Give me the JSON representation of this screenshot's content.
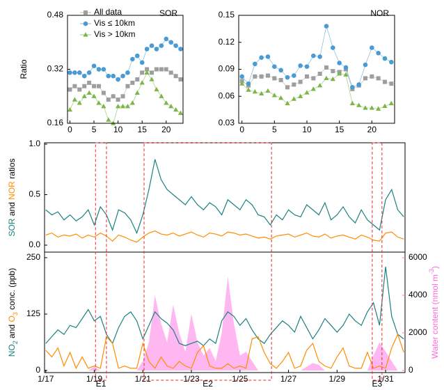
{
  "chart_data": [
    {
      "type": "line",
      "title": "SOR",
      "title_color": "#1a8a8a",
      "y_label": "Ratio",
      "legend": "upper left",
      "x": [
        0,
        1,
        2,
        3,
        4,
        5,
        6,
        7,
        8,
        9,
        10,
        11,
        12,
        13,
        14,
        15,
        16,
        17,
        18,
        19,
        20,
        21,
        22,
        23
      ],
      "xlim": [
        -0.5,
        23.5
      ],
      "xticks": [
        0,
        5,
        10,
        15,
        20
      ],
      "ylim": [
        0.16,
        0.48
      ],
      "yticks": [
        0.16,
        0.32,
        0.48
      ],
      "series": [
        {
          "name": "All data",
          "color": "#9e9e9e",
          "marker": "square",
          "values": [
            0.26,
            0.27,
            0.26,
            0.27,
            0.28,
            0.27,
            0.27,
            0.25,
            0.23,
            0.24,
            0.23,
            0.24,
            0.27,
            0.28,
            0.29,
            0.31,
            0.32,
            0.31,
            0.32,
            0.32,
            0.32,
            0.31,
            0.3,
            0.29
          ]
        },
        {
          "name": "Vis ≤ 10km",
          "color": "#4a9ad4",
          "marker": "circle",
          "values": [
            0.31,
            0.31,
            0.31,
            0.3,
            0.31,
            0.33,
            0.32,
            0.32,
            0.3,
            0.3,
            0.29,
            0.3,
            0.31,
            0.35,
            0.36,
            0.34,
            0.38,
            0.39,
            0.38,
            0.39,
            0.41,
            0.4,
            0.39,
            0.38
          ]
        },
        {
          "name": "Vis > 10km",
          "color": "#7ab648",
          "marker": "triangle",
          "values": [
            0.2,
            0.23,
            0.22,
            0.24,
            0.25,
            0.24,
            0.22,
            0.21,
            0.17,
            0.16,
            0.21,
            0.21,
            0.21,
            0.22,
            0.25,
            0.28,
            0.31,
            0.29,
            0.26,
            0.24,
            0.22,
            0.21,
            0.2,
            0.19
          ]
        }
      ]
    },
    {
      "type": "line",
      "title": "NOR",
      "title_color": "#ff8c00",
      "x": [
        0,
        1,
        2,
        3,
        4,
        5,
        6,
        7,
        8,
        9,
        10,
        11,
        12,
        13,
        14,
        15,
        16,
        17,
        18,
        19,
        20,
        21,
        22,
        23
      ],
      "xlim": [
        -0.5,
        23.5
      ],
      "xticks": [
        0,
        5,
        10,
        15,
        20
      ],
      "ylim": [
        0.03,
        0.15
      ],
      "yticks": [
        0.03,
        0.06,
        0.09,
        0.12,
        0.15
      ],
      "series": [
        {
          "color": "#9e9e9e",
          "marker": "square",
          "values": [
            0.077,
            0.072,
            0.082,
            0.082,
            0.083,
            0.08,
            0.078,
            0.07,
            0.073,
            0.076,
            0.082,
            0.08,
            0.085,
            0.092,
            0.088,
            0.087,
            0.09,
            0.068,
            0.072,
            0.08,
            0.082,
            0.08,
            0.076,
            0.074
          ]
        },
        {
          "color": "#4a9ad4",
          "marker": "circle",
          "values": [
            0.082,
            0.074,
            0.096,
            0.103,
            0.104,
            0.093,
            0.089,
            0.081,
            0.083,
            0.094,
            0.093,
            0.105,
            0.104,
            0.138,
            0.114,
            0.097,
            0.092,
            0.07,
            0.073,
            0.095,
            0.114,
            0.108,
            0.102,
            0.098
          ]
        },
        {
          "color": "#7ab648",
          "marker": "triangle",
          "values": [
            0.074,
            0.067,
            0.065,
            0.063,
            0.066,
            0.061,
            0.058,
            0.052,
            0.057,
            0.06,
            0.064,
            0.068,
            0.072,
            0.08,
            0.079,
            0.085,
            0.084,
            0.052,
            0.05,
            0.047,
            0.047,
            0.046,
            0.049,
            0.052
          ]
        }
      ]
    },
    {
      "type": "line",
      "y_label": [
        {
          "text": "SOR",
          "color": "#1a8080"
        },
        {
          "text": " and ",
          "color": "#000000"
        },
        {
          "text": "NOR",
          "color": "#ff8c00"
        },
        {
          "text": " ratios",
          "color": "#000000"
        }
      ],
      "x": [
        17,
        17.25,
        17.5,
        17.75,
        18,
        18.25,
        18.5,
        18.75,
        19,
        19.25,
        19.5,
        19.75,
        20,
        20.25,
        20.5,
        20.75,
        21,
        21.25,
        21.5,
        21.75,
        22,
        22.25,
        22.5,
        22.75,
        23,
        23.25,
        23.5,
        23.75,
        24,
        24.25,
        24.5,
        24.75,
        25,
        25.25,
        25.5,
        25.75,
        26,
        26.25,
        26.5,
        26.75,
        27,
        27.25,
        27.5,
        27.75,
        28,
        28.25,
        28.5,
        28.75,
        29,
        29.25,
        29.5,
        29.75,
        30,
        30.25,
        30.5,
        30.75,
        31,
        31.25,
        31.5,
        31.75
      ],
      "xlim": [
        16.95,
        31.8
      ],
      "ylim": [
        0,
        1
      ],
      "yticks": [
        {
          "value": 0,
          "label": "0.0"
        },
        {
          "value": 0.5,
          "label": "0.5"
        },
        {
          "value": 1,
          "label": "1.0"
        }
      ],
      "series": [
        {
          "color": "#1a8080",
          "values": [
            0.35,
            0.3,
            0.33,
            0.25,
            0.3,
            0.24,
            0.28,
            0.35,
            0.2,
            0.38,
            0.3,
            0.15,
            0.35,
            0.32,
            0.25,
            0.12,
            0.3,
            0.55,
            0.85,
            0.65,
            0.55,
            0.5,
            0.45,
            0.4,
            0.48,
            0.4,
            0.35,
            0.42,
            0.38,
            0.3,
            0.45,
            0.4,
            0.35,
            0.45,
            0.4,
            0.3,
            0.28,
            0.2,
            0.3,
            0.25,
            0.35,
            0.3,
            0.28,
            0.4,
            0.35,
            0.3,
            0.42,
            0.25,
            0.3,
            0.38,
            0.28,
            0.22,
            0.35,
            0.25,
            0.2,
            0.15,
            0.45,
            0.55,
            0.35,
            0.28
          ]
        },
        {
          "color": "#ff8c00",
          "values": [
            0.1,
            0.12,
            0.08,
            0.1,
            0.09,
            0.11,
            0.07,
            0.1,
            0.08,
            0.12,
            0.09,
            0.04,
            0.1,
            0.08,
            0.05,
            0.03,
            0.08,
            0.12,
            0.14,
            0.11,
            0.1,
            0.12,
            0.09,
            0.11,
            0.13,
            0.1,
            0.08,
            0.12,
            0.11,
            0.09,
            0.13,
            0.12,
            0.1,
            0.11,
            0.09,
            0.07,
            0.08,
            0.06,
            0.09,
            0.1,
            0.11,
            0.08,
            0.1,
            0.12,
            0.09,
            0.08,
            0.11,
            0.07,
            0.09,
            0.1,
            0.08,
            0.06,
            0.1,
            0.08,
            0.05,
            0.04,
            0.12,
            0.13,
            0.08,
            0.06
          ]
        }
      ]
    },
    {
      "type": "line",
      "y_label": [
        {
          "text": "NO",
          "color": "#1a8080"
        },
        {
          "text": "2",
          "color": "#1a8080",
          "shift": "sub"
        },
        {
          "text": " and ",
          "color": "#000000"
        },
        {
          "text": "O",
          "color": "#ff8c00"
        },
        {
          "text": "3",
          "color": "#ff8c00",
          "shift": "sub"
        },
        {
          "text": " conc. (ppb)",
          "color": "#000000"
        }
      ],
      "y2_label": [
        {
          "text": "Water content (nmol m",
          "color": "#ff66dd"
        },
        {
          "text": "-3",
          "color": "#ff66dd",
          "shift": "super"
        },
        {
          "text": ")",
          "color": "#ff66dd"
        }
      ],
      "x": [
        17,
        17.25,
        17.5,
        17.75,
        18,
        18.25,
        18.5,
        18.75,
        19,
        19.25,
        19.5,
        19.75,
        20,
        20.25,
        20.5,
        20.75,
        21,
        21.25,
        21.5,
        21.75,
        22,
        22.25,
        22.5,
        22.75,
        23,
        23.25,
        23.5,
        23.75,
        24,
        24.25,
        24.5,
        24.75,
        25,
        25.25,
        25.5,
        25.75,
        26,
        26.25,
        26.5,
        26.75,
        27,
        27.25,
        27.5,
        27.75,
        28,
        28.25,
        28.5,
        28.75,
        29,
        29.25,
        29.5,
        29.75,
        30,
        30.25,
        30.5,
        30.75,
        31,
        31.25,
        31.5,
        31.75
      ],
      "xlim": [
        16.95,
        31.8
      ],
      "xticks": [
        {
          "value": 17,
          "label": "1/17"
        },
        {
          "value": 19,
          "label": "1/19"
        },
        {
          "value": 21,
          "label": "1/21"
        },
        {
          "value": 23,
          "label": "1/23"
        },
        {
          "value": 25,
          "label": "1/25"
        },
        {
          "value": 27,
          "label": "1/27"
        },
        {
          "value": 29,
          "label": "1/29"
        },
        {
          "value": 31,
          "label": "1/31"
        }
      ],
      "ylim": [
        0,
        250
      ],
      "yticks": [
        0,
        125,
        250
      ],
      "y2lim": [
        0,
        6000
      ],
      "y2ticks": [
        0,
        2000,
        4000,
        6000
      ],
      "y2_color": "#ff66dd",
      "series": [
        {
          "color": "#ffaaf0",
          "fill": true,
          "axis": "y2",
          "values": [
            0,
            0,
            0,
            0,
            0,
            0,
            0,
            0,
            200,
            0,
            0,
            0,
            0,
            0,
            0,
            0,
            500,
            1500,
            4000,
            2500,
            1500,
            3500,
            2000,
            1000,
            3000,
            1500,
            800,
            1200,
            500,
            2000,
            5000,
            2500,
            800,
            1000,
            500,
            0,
            0,
            0,
            0,
            0,
            0,
            0,
            0,
            200,
            400,
            300,
            0,
            0,
            0,
            0,
            0,
            0,
            0,
            0,
            800,
            1500,
            1000,
            500,
            0,
            0
          ]
        },
        {
          "color": "#1a8080",
          "values": [
            60,
            75,
            90,
            80,
            100,
            95,
            115,
            135,
            110,
            120,
            80,
            60,
            95,
            120,
            130,
            110,
            70,
            100,
            130,
            115,
            105,
            90,
            60,
            55,
            60,
            65,
            55,
            70,
            60,
            110,
            130,
            120,
            100,
            115,
            90,
            70,
            60,
            80,
            95,
            110,
            100,
            85,
            120,
            95,
            70,
            90,
            115,
            100,
            85,
            100,
            125,
            110,
            100,
            130,
            150,
            100,
            230,
            120,
            80,
            70
          ]
        },
        {
          "color": "#ff8c00",
          "values": [
            45,
            30,
            50,
            10,
            40,
            5,
            30,
            5,
            10,
            5,
            75,
            60,
            5,
            10,
            5,
            5,
            60,
            20,
            5,
            30,
            10,
            5,
            20,
            10,
            5,
            40,
            55,
            10,
            5,
            5,
            15,
            5,
            10,
            5,
            70,
            75,
            40,
            15,
            5,
            20,
            40,
            5,
            10,
            45,
            60,
            20,
            10,
            5,
            30,
            50,
            10,
            5,
            5,
            40,
            5,
            10,
            5,
            50,
            80,
            40
          ]
        }
      ],
      "events": [
        {
          "label": "E1",
          "start": 19.05,
          "end": 19.5
        },
        {
          "label": "E2",
          "start": 21.05,
          "end": 26.3
        },
        {
          "label": "E3",
          "start": 30.45,
          "end": 30.85
        }
      ]
    }
  ]
}
